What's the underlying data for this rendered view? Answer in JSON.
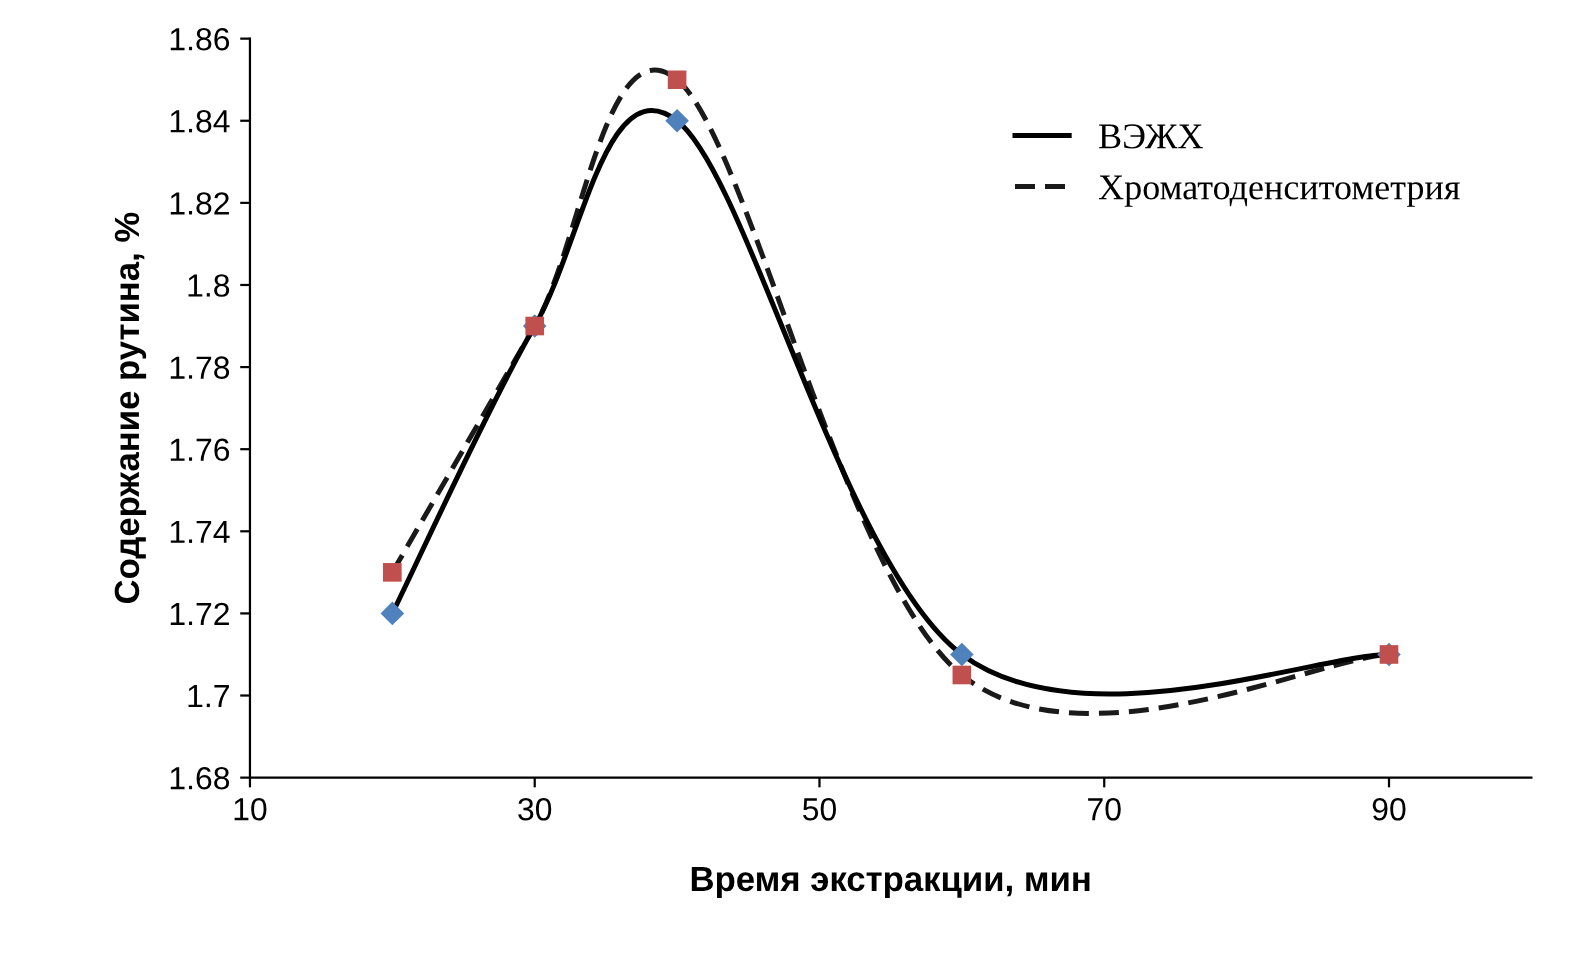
{
  "chart_data": {
    "type": "line",
    "xlabel": "Время экстракции, мин",
    "ylabel": "Содержание рутина, %",
    "xlim": [
      10,
      100
    ],
    "xticks": [
      10,
      30,
      50,
      70,
      90
    ],
    "ylim": [
      1.68,
      1.86
    ],
    "yticks": [
      1.68,
      1.7,
      1.72,
      1.74,
      1.76,
      1.78,
      1.8,
      1.82,
      1.84,
      1.86
    ],
    "grid": false,
    "legend": "top right",
    "series": [
      {
        "name": "ВЭЖХ",
        "x": [
          20,
          30,
          40,
          60,
          90
        ],
        "values": [
          1.72,
          1.79,
          1.84,
          1.71,
          1.71
        ],
        "color": "#000000",
        "colors": [
          "#4f81bd",
          "#4f81bd",
          "#4f81bd",
          "#4f81bd",
          "#4f81bd"
        ],
        "marker": "diamond",
        "line_style": "solid"
      },
      {
        "name": "Хроматоденситометрия",
        "x": [
          20,
          30,
          40,
          60,
          90
        ],
        "values": [
          1.73,
          1.79,
          1.85,
          1.705,
          1.71
        ],
        "color": "#1a1a1a",
        "colors": [
          "#c0504d",
          "#c0504d",
          "#c0504d",
          "#c0504d",
          "#c0504d"
        ],
        "marker": "square",
        "line_style": "dashed"
      }
    ]
  }
}
